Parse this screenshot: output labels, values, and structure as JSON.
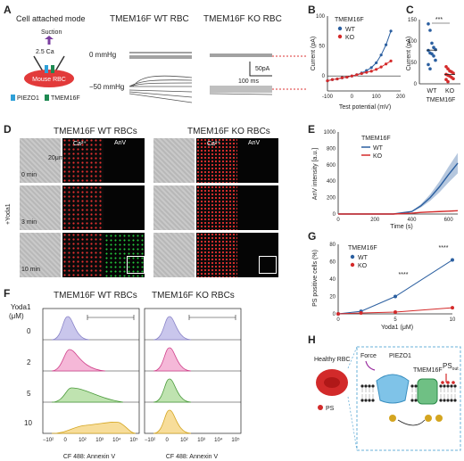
{
  "panels": {
    "A": "A",
    "B": "B",
    "C": "C",
    "D": "D",
    "E": "E",
    "F": "F",
    "G": "G",
    "H": "H"
  },
  "panelA": {
    "mode": "Cell attached mode",
    "suction": "Suction",
    "ca": "2.5 Ca",
    "cell": "Mouse RBC",
    "legend_piezo": "PIEZO1",
    "legend_tmem": "TMEM16F",
    "wt_title": "TMEM16F WT RBC",
    "ko_title": "TMEM16F KO RBC",
    "p0": "0 mmHg",
    "p50": "−50 mmHg",
    "scale_y": "50pA",
    "scale_x": "100 ms"
  },
  "panelB": {
    "ylabel": "Current (pA)",
    "xlabel": "Test potential (mV)",
    "legend_title": "TMEM16F",
    "wt": "WT",
    "ko": "KO",
    "colors": {
      "wt": "#2b5fa0",
      "ko": "#d42a2a"
    }
  },
  "panelC": {
    "ylabel": "Current (pA)",
    "sig": "***",
    "x1": "WT",
    "x2": "KO",
    "xlabel": "TMEM16F"
  },
  "panelD": {
    "wt_title": "TMEM16F WT RBCs",
    "ko_title": "TMEM16F KO RBCs",
    "ca": "Ca²⁺",
    "anv": "AnV",
    "yoda": "+Yoda1",
    "t0": "0 min",
    "t3": "3 min",
    "t10": "10 min",
    "scale": "20μm"
  },
  "panelE": {
    "ylabel": "AnV intensity [a.u.]",
    "xlabel": "Time (s)",
    "legend_title": "TMEM16F",
    "wt": "WT",
    "ko": "KO"
  },
  "panelF": {
    "yoda": "Yoda1",
    "unit": "(μM)",
    "wt_title": "TMEM16F WT RBCs",
    "ko_title": "TMEM16F KO RBCs",
    "xlabel": "CF 488: Annexin V",
    "doses": [
      "0",
      "2",
      "5",
      "10"
    ]
  },
  "panelG": {
    "ylabel": "PS positive cells (%)",
    "xlabel": "Yoda1 (μM)",
    "legend_title": "TMEM16F",
    "wt": "WT",
    "ko": "KO",
    "sig": "****"
  },
  "panelH": {
    "healthy": "Healthy RBC",
    "force": "Force",
    "piezo": "PIEZO1",
    "tmem": "TMEM16F",
    "ca": "Ca",
    "ps_out": "PS",
    "ps_out_sub": "out",
    "ps": "PS"
  },
  "chart_data": [
    {
      "type": "line",
      "panel": "B",
      "xlabel": "Test potential (mV)",
      "ylabel": "Current (pA)",
      "xlim": [
        -100,
        200
      ],
      "ylim": [
        -25,
        100
      ],
      "x": [
        -100,
        -80,
        -60,
        -40,
        -20,
        0,
        20,
        40,
        60,
        80,
        100,
        120,
        140,
        160
      ],
      "series": [
        {
          "name": "WT",
          "values": [
            -8,
            -6,
            -5,
            -3,
            -2,
            0,
            2,
            5,
            9,
            14,
            22,
            35,
            52,
            75
          ]
        },
        {
          "name": "KO",
          "values": [
            -8,
            -6,
            -5,
            -3,
            -2,
            0,
            2,
            4,
            6,
            8,
            11,
            15,
            20,
            25
          ]
        }
      ]
    },
    {
      "type": "scatter",
      "panel": "C",
      "ylabel": "Current (pA)",
      "ylim": [
        0,
        150
      ],
      "categories": [
        "WT",
        "KO"
      ],
      "series": [
        {
          "name": "WT",
          "values": [
            140,
            125,
            95,
            85,
            80,
            78,
            72,
            70,
            65,
            55,
            45,
            35
          ]
        },
        {
          "name": "KO",
          "values": [
            40,
            35,
            30,
            28,
            25,
            22,
            20,
            18,
            15,
            12,
            10,
            5
          ]
        }
      ]
    },
    {
      "type": "area",
      "panel": "E",
      "xlabel": "Time (s)",
      "ylabel": "AnV intensity [a.u.]",
      "xlim": [
        0,
        650
      ],
      "ylim": [
        0,
        1000
      ],
      "x": [
        0,
        100,
        200,
        300,
        400,
        450,
        500,
        550,
        600,
        650
      ],
      "series": [
        {
          "name": "WT",
          "values": [
            0,
            0,
            0,
            0,
            30,
            100,
            200,
            330,
            480,
            620
          ]
        },
        {
          "name": "KO",
          "values": [
            0,
            0,
            0,
            0,
            10,
            20,
            25,
            30,
            35,
            40
          ]
        }
      ]
    },
    {
      "type": "line",
      "panel": "G",
      "xlabel": "Yoda1 (μM)",
      "ylabel": "PS positive cells (%)",
      "xlim": [
        0,
        10
      ],
      "ylim": [
        0,
        80
      ],
      "x": [
        0,
        2,
        5,
        10
      ],
      "series": [
        {
          "name": "WT",
          "values": [
            0,
            3,
            20,
            62
          ]
        },
        {
          "name": "KO",
          "values": [
            0,
            1,
            2,
            7
          ]
        }
      ]
    }
  ]
}
